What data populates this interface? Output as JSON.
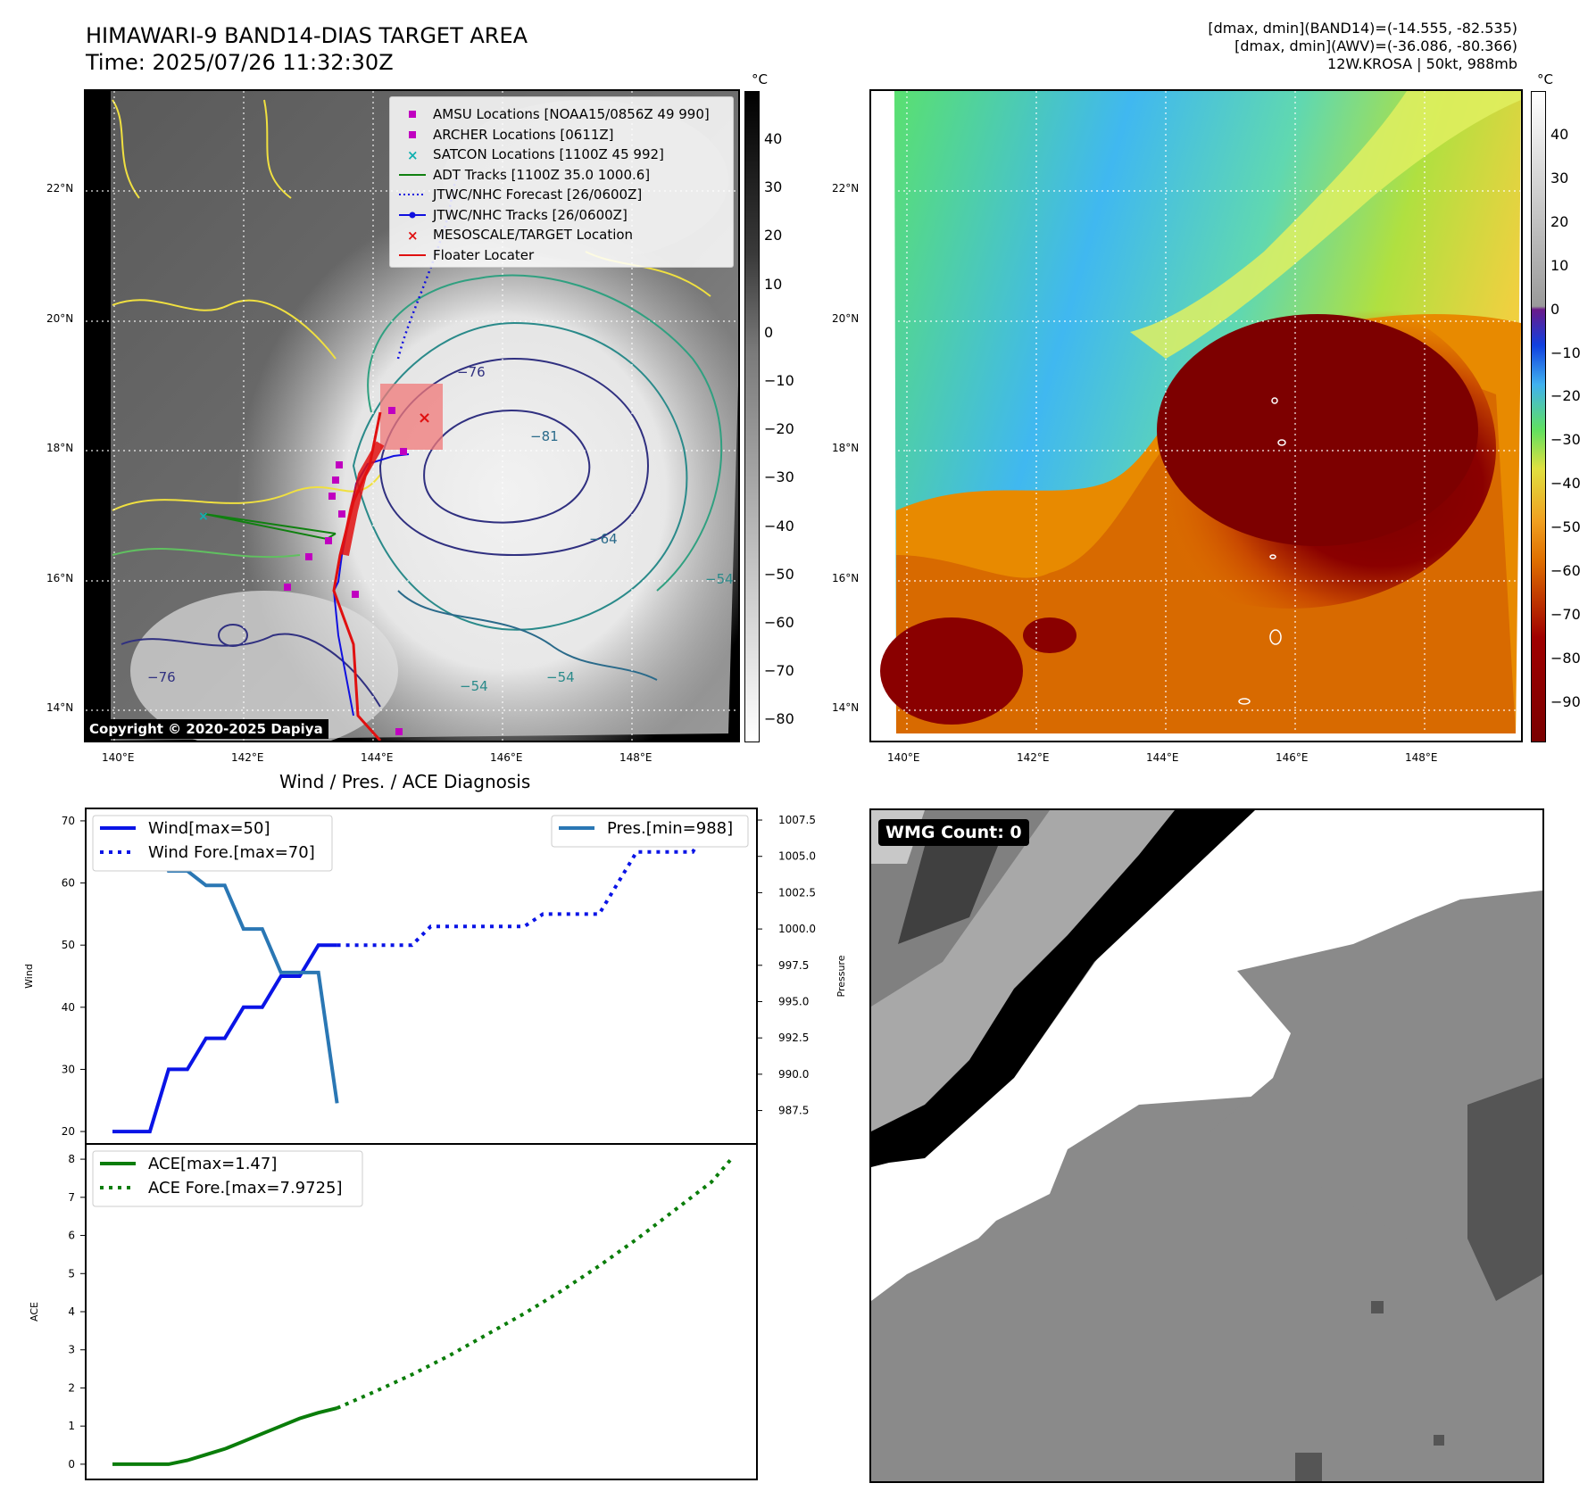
{
  "header": {
    "title": "HIMAWARI-9 BAND14-DIAS TARGET AREA",
    "time": "Time: 2025/07/26 11:32:30Z",
    "stats_band14": "[dmax, dmin](BAND14)=(-14.555, -82.535)",
    "stats_awv": "[dmax, dmin](AWV)=(-36.086, -80.366)",
    "storm_info": "12W.KROSA | 50kt, 988mb"
  },
  "map_axes": {
    "lon_ticks": [
      "140°E",
      "142°E",
      "144°E",
      "146°E",
      "148°E"
    ],
    "lat_ticks": [
      "22°N",
      "20°N",
      "18°N",
      "16°N",
      "14°N"
    ],
    "copyright": "Copyright © 2020-2025 Dapiya"
  },
  "colorbar_gray": {
    "unit": "°C",
    "ticks": [
      "40",
      "30",
      "20",
      "10",
      "0",
      "−10",
      "−20",
      "−30",
      "−40",
      "−50",
      "−60",
      "−70",
      "−80"
    ]
  },
  "colorbar_color": {
    "unit": "°C",
    "ticks": [
      "40",
      "30",
      "20",
      "10",
      "0",
      "−10",
      "−20",
      "−30",
      "−40",
      "−50",
      "−60",
      "−70",
      "−80",
      "−90"
    ]
  },
  "map_legend": [
    {
      "label": "AMSU Locations [NOAA15/0856Z 49 990]",
      "marker": "square",
      "color": "#c000c0"
    },
    {
      "label": "ARCHER Locations [0611Z]",
      "marker": "square",
      "color": "#c000c0"
    },
    {
      "label": "SATCON Locations [1100Z 45 992]",
      "marker": "x",
      "color": "#10b0b0"
    },
    {
      "label": "ADT Tracks [1100Z 35.0 1000.6]",
      "marker": "line",
      "color": "#108010"
    },
    {
      "label": "JTWC/NHC Forecast [26/0600Z]",
      "marker": "dotted",
      "color": "#1010e0"
    },
    {
      "label": "JTWC/NHC Tracks [26/0600Z]",
      "marker": "line-dot",
      "color": "#1010e0"
    },
    {
      "label": "MESOSCALE/TARGET Location",
      "marker": "x",
      "color": "#e01010"
    },
    {
      "label": "Floater Locater",
      "marker": "line",
      "color": "#e01010"
    }
  ],
  "contour_labels": [
    "−76",
    "−81",
    "−64",
    "−54",
    "−76",
    "−54",
    "−54"
  ],
  "diagnosis_title": "Wind / Pres. / ACE Diagnosis",
  "wmg_count": "WMG Count: 0",
  "chart_data": [
    {
      "type": "line",
      "title": "Wind / Pres. / ACE Diagnosis",
      "ylabel": "Wind",
      "ylabel_right": "Pressure",
      "ylim": [
        18,
        72
      ],
      "ylim_right": [
        985.2,
        1008.3
      ],
      "yticks": [
        20,
        30,
        40,
        50,
        60,
        70
      ],
      "yticks_right": [
        "1007.5",
        "1005.0",
        "1002.5",
        "1000.0",
        "997.5",
        "995.0",
        "992.5",
        "990.0",
        "987.5"
      ],
      "legend_left": [
        "Wind[max=50]",
        "Wind Fore.[max=70]"
      ],
      "legend_right": [
        "Pres.[min=988]"
      ],
      "series": [
        {
          "name": "Wind[max=50]",
          "axis": "left",
          "style": "solid",
          "color": "#0a14e6",
          "points": [
            [
              0,
              20
            ],
            [
              1,
              20
            ],
            [
              2,
              20
            ],
            [
              3,
              30
            ],
            [
              4,
              30
            ],
            [
              5,
              35
            ],
            [
              6,
              35
            ],
            [
              7,
              40
            ],
            [
              8,
              40
            ],
            [
              9,
              45
            ],
            [
              10,
              45
            ],
            [
              11,
              50
            ],
            [
              12,
              50
            ]
          ]
        },
        {
          "name": "Wind Fore.[max=70]",
          "axis": "left",
          "style": "dotted",
          "color": "#0a14e6",
          "points": [
            [
              12,
              50
            ],
            [
              13,
              50
            ],
            [
              14,
              50
            ],
            [
              15,
              50
            ],
            [
              16,
              50
            ],
            [
              17,
              53
            ],
            [
              18,
              53
            ],
            [
              19,
              53
            ],
            [
              20,
              53
            ],
            [
              21,
              53
            ],
            [
              22,
              53
            ],
            [
              23,
              55
            ],
            [
              24,
              55
            ],
            [
              25,
              55
            ],
            [
              26,
              55
            ],
            [
              27,
              60
            ],
            [
              28,
              65
            ],
            [
              29,
              65
            ],
            [
              30,
              65
            ],
            [
              31,
              65
            ],
            [
              32,
              70
            ],
            [
              33,
              70
            ]
          ]
        },
        {
          "name": "Pres.[min=988]",
          "axis": "right",
          "style": "solid",
          "color": "#2a77b4",
          "points": [
            [
              0,
              1007.5
            ],
            [
              1,
              1007.5
            ],
            [
              2,
              1007.5
            ],
            [
              3,
              1004.0
            ],
            [
              4,
              1004.0
            ],
            [
              5,
              1003.0
            ],
            [
              6,
              1003.0
            ],
            [
              7,
              1000.0
            ],
            [
              8,
              1000.0
            ],
            [
              9,
              997.0
            ],
            [
              10,
              997.0
            ],
            [
              11,
              997.0
            ],
            [
              12,
              988.0
            ]
          ]
        }
      ]
    },
    {
      "type": "line",
      "ylabel": "ACE",
      "ylim": [
        -0.4,
        8.4
      ],
      "yticks": [
        0,
        1,
        2,
        3,
        4,
        5,
        6,
        7,
        8
      ],
      "legend_left": [
        "ACE[max=1.47]",
        "ACE Fore.[max=7.9725]"
      ],
      "series": [
        {
          "name": "ACE[max=1.47]",
          "style": "solid",
          "color": "#0a7d0a",
          "points": [
            [
              0,
              0
            ],
            [
              1,
              0
            ],
            [
              2,
              0
            ],
            [
              3,
              0
            ],
            [
              4,
              0.1
            ],
            [
              5,
              0.25
            ],
            [
              6,
              0.4
            ],
            [
              7,
              0.6
            ],
            [
              8,
              0.8
            ],
            [
              9,
              1.0
            ],
            [
              10,
              1.2
            ],
            [
              11,
              1.35
            ],
            [
              12,
              1.47
            ]
          ]
        },
        {
          "name": "ACE Fore.[max=7.9725]",
          "style": "dotted",
          "color": "#0a7d0a",
          "points": [
            [
              12,
              1.47
            ],
            [
              14,
              1.9
            ],
            [
              16,
              2.35
            ],
            [
              18,
              2.85
            ],
            [
              20,
              3.4
            ],
            [
              22,
              3.95
            ],
            [
              24,
              4.55
            ],
            [
              26,
              5.2
            ],
            [
              28,
              5.9
            ],
            [
              30,
              6.65
            ],
            [
              32,
              7.4
            ],
            [
              33,
              7.9725
            ]
          ]
        }
      ]
    }
  ]
}
